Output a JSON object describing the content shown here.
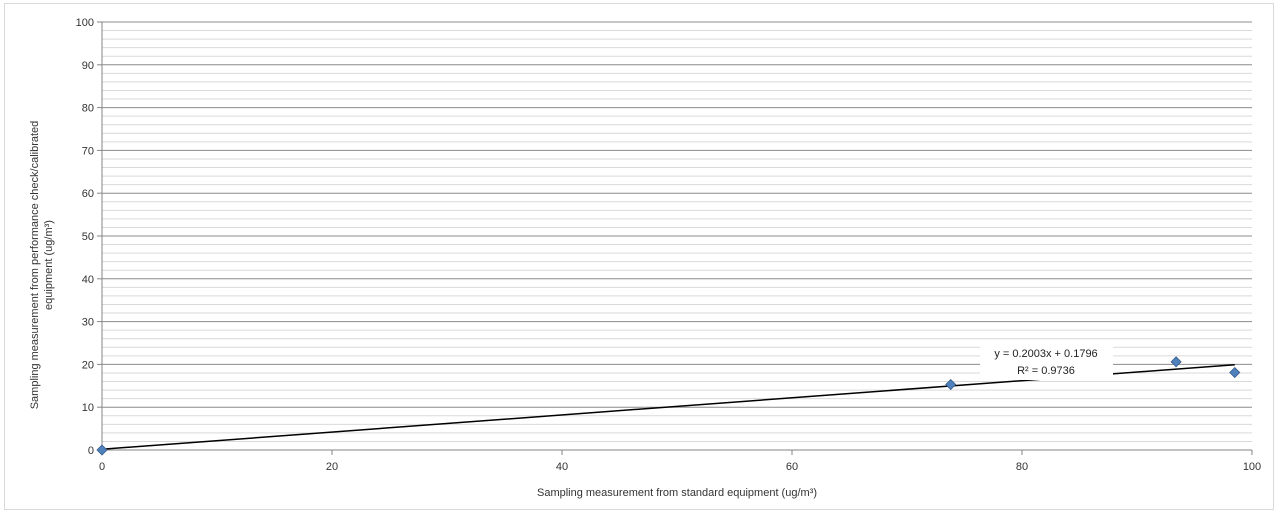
{
  "chart_data": {
    "type": "scatter",
    "title": "",
    "xlabel": "Sampling measurement from standard equipment  (ug/m³)",
    "ylabel_line1": "Sampling measurement from performance check/calibrated",
    "ylabel_line2": "equipment (ug/m³)",
    "xlim": [
      0,
      100
    ],
    "ylim": [
      0,
      100
    ],
    "x_ticks": [
      "0",
      "20",
      "40",
      "60",
      "80",
      "100"
    ],
    "y_ticks": [
      "0",
      "10",
      "20",
      "30",
      "40",
      "50",
      "60",
      "70",
      "80",
      "90",
      "100"
    ],
    "grid": true,
    "legend": "none",
    "series": [
      {
        "points": [
          {
            "x": 0,
            "y": 0
          },
          {
            "x": 73.8,
            "y": 15.3
          },
          {
            "x": 93.4,
            "y": 20.6
          },
          {
            "x": 98.5,
            "y": 18.1
          }
        ]
      }
    ],
    "trendline": {
      "type": "linear",
      "slope": 0.2003,
      "intercept": 0.1796,
      "x_range": [
        0,
        98.5
      ],
      "equation_label": "y = 0.2003x + 0.1796",
      "r2_label": "R² = 0.9736"
    },
    "colors": {
      "marker": "#4f81bd",
      "marker_stroke": "#385d8a",
      "trendline": "#000000",
      "major_grid": "#8c8c8c",
      "minor_grid": "#d9d9d9",
      "axis": "#868686"
    }
  }
}
